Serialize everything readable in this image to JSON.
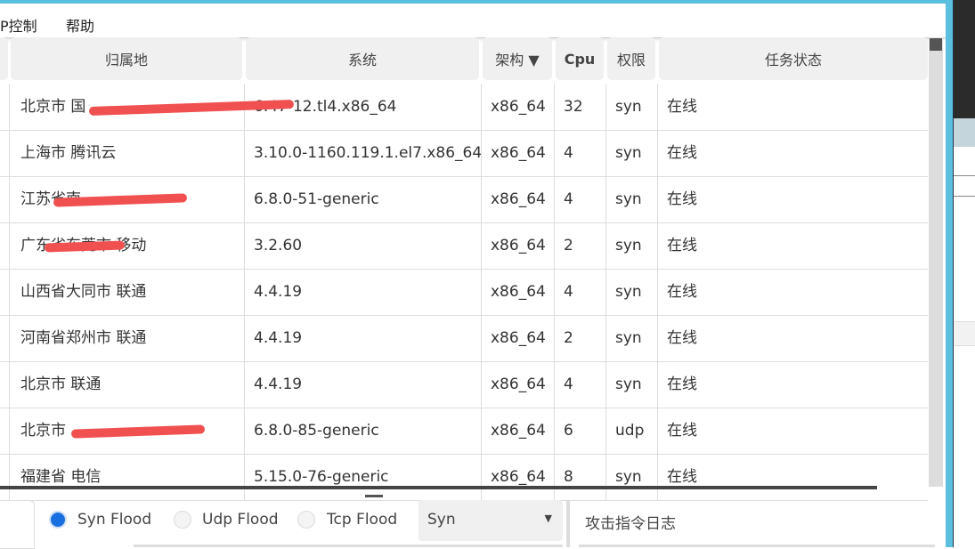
{
  "menu": {
    "items": [
      "P控制",
      "帮助"
    ]
  },
  "table": {
    "headers": [
      "归属地",
      "系统",
      "架构 ▼",
      "Cpu",
      "权限",
      "任务状态"
    ],
    "rows": [
      {
        "location": "北京市 国",
        "system": "6.47-12.tl4.x86_64",
        "arch": "x86_64",
        "cpu": "32",
        "perm": "syn",
        "status": "在线",
        "redacted": true
      },
      {
        "location": "上海市 腾讯云",
        "system": "3.10.0-1160.119.1.el7.x86_64",
        "arch": "x86_64",
        "cpu": "4",
        "perm": "syn",
        "status": "在线"
      },
      {
        "location": "江苏省南",
        "system": "6.8.0-51-generic",
        "arch": "x86_64",
        "cpu": "4",
        "perm": "syn",
        "status": "在线",
        "redacted": true
      },
      {
        "location": "广东省东莞市 移动",
        "system": "3.2.60",
        "arch": "x86_64",
        "cpu": "2",
        "perm": "syn",
        "status": "在线",
        "redacted": true
      },
      {
        "location": "山西省大同市 联通",
        "system": "4.4.19",
        "arch": "x86_64",
        "cpu": "4",
        "perm": "syn",
        "status": "在线"
      },
      {
        "location": "河南省郑州市 联通",
        "system": "4.4.19",
        "arch": "x86_64",
        "cpu": "2",
        "perm": "syn",
        "status": "在线"
      },
      {
        "location": "北京市 联通",
        "system": "4.4.19",
        "arch": "x86_64",
        "cpu": "4",
        "perm": "syn",
        "status": "在线"
      },
      {
        "location": "北京市",
        "system": "6.8.0-85-generic",
        "arch": "x86_64",
        "cpu": "6",
        "perm": "udp",
        "status": "在线",
        "redacted": true
      },
      {
        "location": "福建省 电信",
        "system": "5.15.0-76-generic",
        "arch": "x86_64",
        "cpu": "8",
        "perm": "syn",
        "status": "在线"
      }
    ]
  },
  "attack": {
    "modes": [
      "Syn Flood",
      "Udp Flood",
      "Tcp Flood"
    ],
    "selected": "Syn Flood",
    "dropdown_value": "Syn",
    "log_title": "攻击指令日志"
  }
}
